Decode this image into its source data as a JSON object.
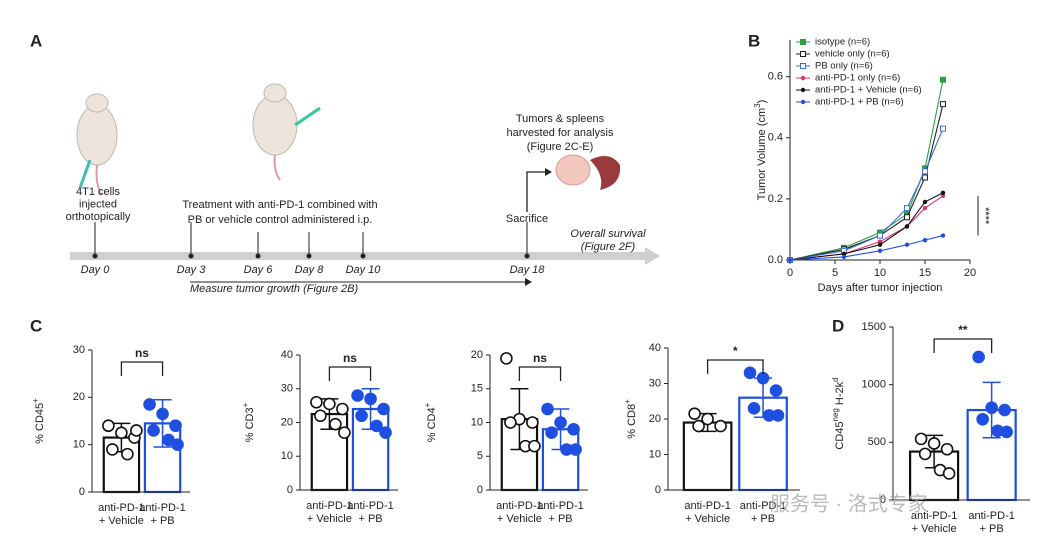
{
  "diagram": {
    "label": "A",
    "days": [
      "Day 0",
      "Day 3",
      "Day 6",
      "Day 8",
      "Day 10",
      "Day 18"
    ],
    "injection": [
      "4T1 cells",
      "injected",
      "orthotopically"
    ],
    "treatment": [
      "Treatment with anti-PD-1 combined with",
      "PB or vehicle control administered i.p."
    ],
    "harvest": [
      "Tumors & spleens",
      "harvested for analysis",
      "(Figure 2C-E)"
    ],
    "sacrifice": "Sacrifice",
    "survival": [
      "Overall survival",
      "(Figure 2F)"
    ],
    "measure": "Measure tumor growth (Figure 2B)"
  },
  "panel_labels": [
    "B",
    "C",
    "D"
  ],
  "watermark": "服务号 · 洛式专家",
  "chart_data": [
    {
      "type": "line",
      "ylabel": [
        {
          "text": "Tumor Volume (cm"
        },
        {
          "text": "3",
          "sup": true
        },
        {
          "text": ")"
        }
      ],
      "xlabel": "Days after tumor injection",
      "x": [
        0,
        6,
        10,
        13,
        15,
        17
      ],
      "xlim": [
        0,
        20
      ],
      "xticks": [
        0,
        5,
        10,
        15,
        20
      ],
      "ylim": [
        0,
        0.72
      ],
      "yticks": [
        {
          "value": 0,
          "label": "0.0"
        },
        0.2,
        0.4,
        0.6
      ],
      "annotation": "****",
      "series": [
        {
          "name": "isotype (n=6)",
          "color": "#2e9e3e",
          "marker": "square",
          "values": [
            0,
            0.04,
            0.09,
            0.15,
            0.3,
            0.59
          ]
        },
        {
          "name": "vehicle only (n=6)",
          "color": "#222222",
          "marker": "square-open",
          "values": [
            0,
            0.035,
            0.08,
            0.14,
            0.27,
            0.51
          ]
        },
        {
          "name": "PB only (n=6)",
          "color": "#3a6fd8",
          "marker": "square-open",
          "values": [
            0,
            0.03,
            0.08,
            0.17,
            0.29,
            0.43
          ]
        },
        {
          "name": "anti-PD-1 only (n=6)",
          "color": "#e0307a",
          "marker": "circle",
          "values": [
            0,
            0.02,
            0.06,
            0.11,
            0.17,
            0.21
          ]
        },
        {
          "name": "anti-PD-1 + Vehicle (n=6)",
          "color": "#111111",
          "marker": "circle",
          "values": [
            0,
            0.02,
            0.05,
            0.11,
            0.19,
            0.22
          ]
        },
        {
          "name": "anti-PD-1 + PB (n=6)",
          "color": "#2150e0",
          "marker": "circle",
          "values": [
            0,
            0.01,
            0.03,
            0.05,
            0.065,
            0.08
          ]
        }
      ]
    },
    {
      "type": "bar",
      "ylabel": [
        {
          "text": "% CD45"
        },
        {
          "text": "+",
          "sup": true
        }
      ],
      "categories": [
        [
          "anti-PD-1",
          "+ Vehicle"
        ],
        [
          "anti-PD-1",
          "+ PB"
        ]
      ],
      "colors": [
        "#111111",
        "#1f4fe0"
      ],
      "filled": [
        false,
        true
      ],
      "ylim": [
        0,
        30
      ],
      "yticks": [
        0,
        10,
        20,
        30
      ],
      "significance": "ns",
      "values": [
        11.5,
        14.5
      ],
      "errors": [
        3,
        5
      ],
      "points": [
        [
          14,
          12.5,
          11.5,
          9,
          8,
          13
        ],
        [
          18.5,
          16.5,
          14,
          13,
          11,
          10
        ]
      ]
    },
    {
      "type": "bar",
      "ylabel": [
        {
          "text": "% CD3"
        },
        {
          "text": "+",
          "sup": true
        }
      ],
      "categories": [
        [
          "anti-PD-1",
          "+ Vehicle"
        ],
        [
          "anti-PD-1",
          "+ PB"
        ]
      ],
      "colors": [
        "#111111",
        "#1f4fe0"
      ],
      "filled": [
        false,
        true
      ],
      "ylim": [
        0,
        40
      ],
      "yticks": [
        0,
        10,
        20,
        30,
        40
      ],
      "significance": "ns",
      "values": [
        22.5,
        24
      ],
      "errors": [
        4.5,
        6
      ],
      "points": [
        [
          26,
          25.5,
          24,
          22,
          19.5,
          17
        ],
        [
          28,
          27,
          24,
          22,
          19,
          17
        ]
      ]
    },
    {
      "type": "bar",
      "ylabel": [
        {
          "text": "% CD4"
        },
        {
          "text": "+",
          "sup": true
        }
      ],
      "categories": [
        [
          "anti-PD-1",
          "+ Vehicle"
        ],
        [
          "anti-PD-1",
          "+ PB"
        ]
      ],
      "colors": [
        "#111111",
        "#1f4fe0"
      ],
      "filled": [
        false,
        true
      ],
      "ylim": [
        0,
        20
      ],
      "yticks": [
        0,
        5,
        10,
        15,
        20
      ],
      "significance": "ns",
      "values": [
        10.5,
        9
      ],
      "errors": [
        4.5,
        3
      ],
      "points": [
        [
          19.5,
          10.5,
          10,
          10,
          6.5,
          6.5
        ],
        [
          12,
          10,
          9,
          8.5,
          6,
          6
        ]
      ]
    },
    {
      "type": "bar",
      "ylabel": [
        {
          "text": "% CD8"
        },
        {
          "text": "+",
          "sup": true
        }
      ],
      "categories": [
        [
          "anti-PD-1",
          "+ Vehicle"
        ],
        [
          "anti-PD-1",
          "+ PB"
        ]
      ],
      "colors": [
        "#111111",
        "#1f4fe0"
      ],
      "filled": [
        false,
        true
      ],
      "ylim": [
        0,
        40
      ],
      "yticks": [
        0,
        10,
        20,
        30,
        40
      ],
      "significance": "*",
      "values": [
        19,
        26
      ],
      "errors": [
        2.5,
        5.5
      ],
      "points": [
        [
          21.5,
          20,
          18,
          18
        ],
        [
          33,
          31.5,
          28,
          23,
          21,
          21
        ]
      ]
    },
    {
      "type": "bar",
      "ylabel": [
        {
          "text": "CD45"
        },
        {
          "text": "neg",
          "sup": true
        },
        {
          "text": " H-2k"
        },
        {
          "text": "d",
          "sup": true
        }
      ],
      "categories": [
        [
          "anti-PD-1",
          "+ Vehicle"
        ],
        [
          "anti-PD-1",
          "+ PB"
        ]
      ],
      "colors": [
        "#111111",
        "#1f4fe0"
      ],
      "filled": [
        false,
        true
      ],
      "ylim": [
        0,
        1500
      ],
      "yticks": [
        0,
        500,
        1000,
        1500
      ],
      "significance": "**",
      "values": [
        420,
        780
      ],
      "errors": [
        140,
        240
      ],
      "points": [
        [
          530,
          490,
          440,
          400,
          260,
          230
        ],
        [
          1240,
          800,
          780,
          700,
          600,
          590
        ]
      ]
    }
  ]
}
